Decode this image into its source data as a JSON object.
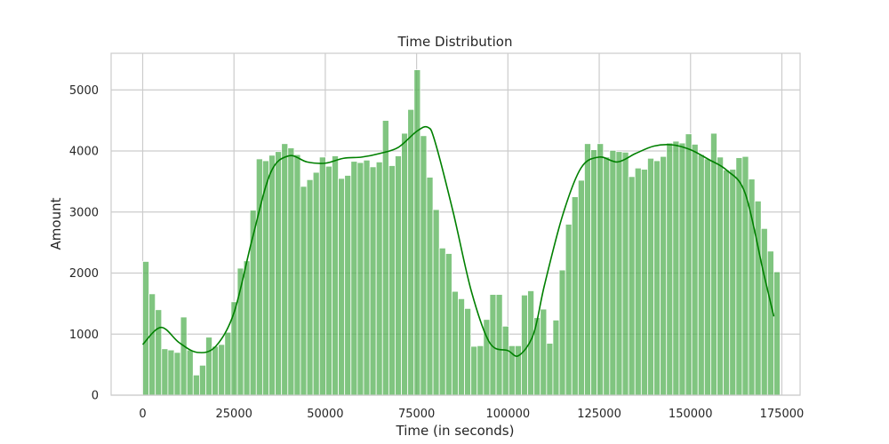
{
  "chart_data": {
    "type": "bar",
    "title": "Time Distribution",
    "xlabel": "Time (in seconds)",
    "ylabel": "Amount",
    "xlim": [
      -8640,
      180000
    ],
    "ylim": [
      0,
      5600
    ],
    "bin_start": 0,
    "bin_width": 1728,
    "x_ticks": [
      0,
      25000,
      50000,
      75000,
      100000,
      125000,
      150000,
      175000
    ],
    "x_tick_labels": [
      "0",
      "25000",
      "50000",
      "75000",
      "100000",
      "125000",
      "150000",
      "175000"
    ],
    "y_ticks": [
      0,
      1000,
      2000,
      3000,
      4000,
      5000
    ],
    "y_tick_labels": [
      "0",
      "1000",
      "2000",
      "3000",
      "4000",
      "5000"
    ],
    "grid": true,
    "bar_color": "#55b255",
    "kde_color": "#008000",
    "values": [
      2190,
      1660,
      1400,
      760,
      740,
      700,
      1280,
      740,
      330,
      490,
      950,
      800,
      830,
      1030,
      1530,
      2080,
      2200,
      3030,
      3870,
      3840,
      3930,
      3990,
      4120,
      4050,
      3940,
      3420,
      3530,
      3650,
      3900,
      3750,
      3920,
      3550,
      3600,
      3830,
      3810,
      3850,
      3740,
      3820,
      4500,
      3760,
      3920,
      4290,
      4680,
      5330,
      4250,
      3570,
      3040,
      2410,
      2320,
      1700,
      1580,
      1420,
      800,
      810,
      1240,
      1650,
      1650,
      1130,
      810,
      810,
      1640,
      1710,
      1270,
      1410,
      850,
      1230,
      2050,
      2800,
      3250,
      3520,
      4120,
      4020,
      4120,
      3900,
      4010,
      3990,
      3980,
      3580,
      3720,
      3700,
      3880,
      3840,
      3910,
      4130,
      4160,
      4130,
      4280,
      4110,
      3940,
      3870,
      4290,
      3900,
      3690,
      3700,
      3890,
      3910,
      3540,
      3180,
      2730,
      2360,
      2020
    ],
    "kde": {
      "x": [
        0,
        5000,
        10000,
        15000,
        20000,
        25000,
        30000,
        35000,
        40000,
        45000,
        50000,
        55000,
        60000,
        65000,
        70000,
        75000,
        78000,
        80000,
        85000,
        90000,
        95000,
        100000,
        103000,
        107000,
        110000,
        115000,
        120000,
        125000,
        130000,
        135000,
        140000,
        145000,
        150000,
        155000,
        160000,
        165000,
        170000,
        172800
      ],
      "y": [
        830,
        1110,
        860,
        700,
        800,
        1350,
        2560,
        3640,
        3920,
        3820,
        3800,
        3880,
        3900,
        3960,
        4060,
        4320,
        4390,
        4160,
        3000,
        1700,
        860,
        730,
        650,
        1000,
        1800,
        2950,
        3720,
        3900,
        3820,
        3960,
        4080,
        4100,
        4020,
        3860,
        3680,
        3300,
        2000,
        1290
      ]
    }
  }
}
